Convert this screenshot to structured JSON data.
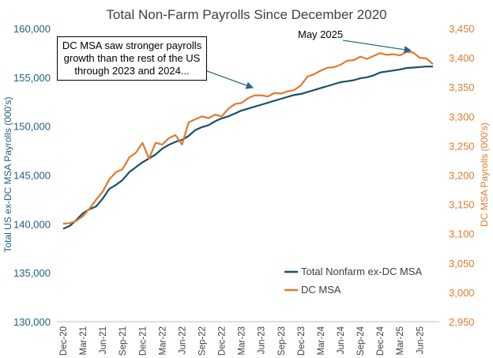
{
  "chart_data": {
    "type": "line",
    "title": "Total Non-Farm Payrolls Since December 2020",
    "ylabel_left": "Total US ex-DC MSA Payrolls (000's)",
    "ylabel_right": "DC MSA Payrolls (000's)",
    "ylim_left": [
      130000,
      160000
    ],
    "ylim_right": [
      2950,
      3450
    ],
    "yticks_left": [
      130000,
      135000,
      140000,
      145000,
      150000,
      155000,
      160000
    ],
    "yticks_right": [
      2950,
      3000,
      3050,
      3100,
      3150,
      3200,
      3250,
      3300,
      3350,
      3400,
      3450
    ],
    "yticks_left_labels": [
      "130,000",
      "135,000",
      "140,000",
      "145,000",
      "150,000",
      "155,000",
      "160,000"
    ],
    "yticks_right_labels": [
      "2,950",
      "3,000",
      "3,050",
      "3,100",
      "3,150",
      "3,200",
      "3,250",
      "3,300",
      "3,350",
      "3,400",
      "3,450"
    ],
    "x_ticks": [
      "Dec-20",
      "Mar-21",
      "Jun-21",
      "Sep-21",
      "Dec-21",
      "Mar-22",
      "Jun-22",
      "Sep-22",
      "Dec-22",
      "Mar-23",
      "Jun-23",
      "Sep-23",
      "Dec-23",
      "Mar-24",
      "Jun-24",
      "Sep-24",
      "Dec-24",
      "Mar-25",
      "Jun-25"
    ],
    "x_tick_indices": [
      0,
      3,
      6,
      9,
      12,
      15,
      18,
      21,
      24,
      27,
      30,
      33,
      36,
      39,
      42,
      45,
      48,
      51,
      54
    ],
    "x_months_total": 57,
    "series": [
      {
        "name": "Total Nonfarm ex-DC MSA",
        "axis": "left",
        "color": "#17506a",
        "values": [
          139500,
          139800,
          140400,
          141100,
          141500,
          141800,
          142600,
          143600,
          144000,
          144500,
          145300,
          145800,
          146300,
          146700,
          147100,
          147700,
          148100,
          148400,
          148600,
          149000,
          149600,
          149900,
          150100,
          150500,
          150800,
          151000,
          151300,
          151600,
          151800,
          152000,
          152200,
          152400,
          152600,
          152800,
          153000,
          153200,
          153300,
          153500,
          153700,
          153900,
          154100,
          154300,
          154500,
          154600,
          154700,
          154900,
          155000,
          155200,
          155500,
          155600,
          155700,
          155800,
          155950,
          156000,
          156050,
          156100,
          156100
        ]
      },
      {
        "name": "DC MSA",
        "axis": "right",
        "color": "#e07a2e",
        "values": [
          3117,
          3118,
          3122,
          3130,
          3143,
          3158,
          3172,
          3193,
          3205,
          3210,
          3230,
          3238,
          3255,
          3228,
          3255,
          3252,
          3263,
          3268,
          3252,
          3290,
          3295,
          3300,
          3297,
          3303,
          3300,
          3313,
          3321,
          3323,
          3331,
          3336,
          3336,
          3334,
          3340,
          3339,
          3343,
          3345,
          3353,
          3368,
          3372,
          3378,
          3383,
          3384,
          3388,
          3395,
          3396,
          3402,
          3398,
          3403,
          3408,
          3405,
          3406,
          3404,
          3410,
          3409,
          3400,
          3399,
          3389
        ]
      }
    ],
    "legend": {
      "placement": "lower-right"
    },
    "annotations": {
      "box_lines": [
        "DC MSA saw stronger payrolls",
        "growth than the rest of the US",
        "through 2023 and 2024..."
      ],
      "may_label": "May 2025"
    }
  },
  "colors": {
    "left_axis_text": "#1f5f80",
    "right_axis_text": "#e07a2e",
    "title_text": "#404040",
    "axis_text": "#404040",
    "axis_line": "#bfbfbf",
    "arrow": "#2d6a86"
  }
}
